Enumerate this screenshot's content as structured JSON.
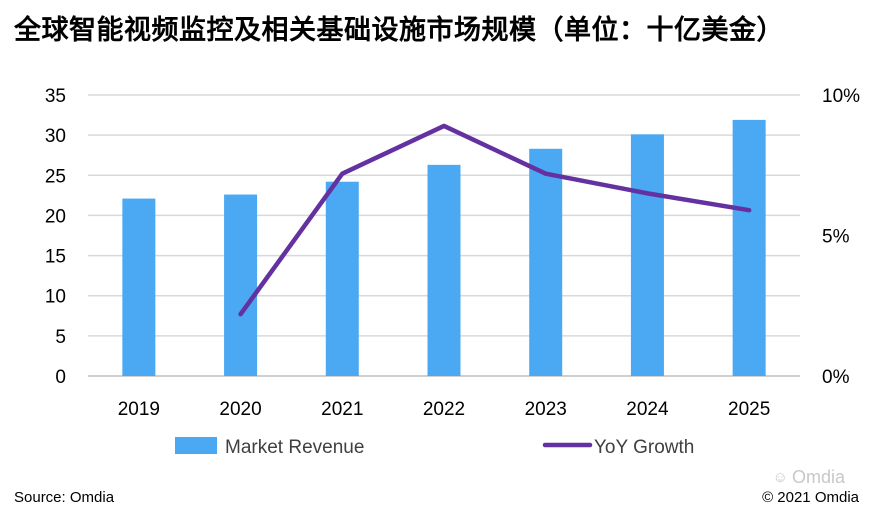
{
  "title": "全球智能视频监控及相关基础设施市场规模（单位：十亿美金）",
  "footer": {
    "source": "Source: Omdia",
    "copyright": "© 2021 Omdia",
    "watermark": "Omdia",
    "watermark_icon": "wechat-icon"
  },
  "colors": {
    "bar": "#4BA8F2",
    "line": "#6431A0",
    "grid": "#D9D9D9"
  },
  "chart_data": {
    "type": "bar",
    "title": "全球智能视频监控及相关基础设施市场规模（单位：十亿美金）",
    "categories": [
      "2019",
      "2020",
      "2021",
      "2022",
      "2023",
      "2024",
      "2025"
    ],
    "series": [
      {
        "name": "Market Revenue",
        "type": "bar",
        "axis": "left",
        "values": [
          22.1,
          22.6,
          24.2,
          26.3,
          28.3,
          30.1,
          31.9
        ]
      },
      {
        "name": "YoY Growth",
        "type": "line",
        "axis": "right",
        "unit": "%",
        "values": [
          null,
          2.2,
          7.2,
          8.9,
          7.2,
          6.5,
          5.9
        ]
      }
    ],
    "ylim": [
      0,
      35
    ],
    "yticks": [
      "0",
      "5",
      "10",
      "15",
      "20",
      "25",
      "30",
      "35"
    ],
    "y2lim": [
      0,
      10
    ],
    "y2ticks": [
      "0%",
      "5%",
      "10%"
    ],
    "xlabel": "",
    "ylabel": "",
    "grid": true,
    "legend": "bottom"
  }
}
